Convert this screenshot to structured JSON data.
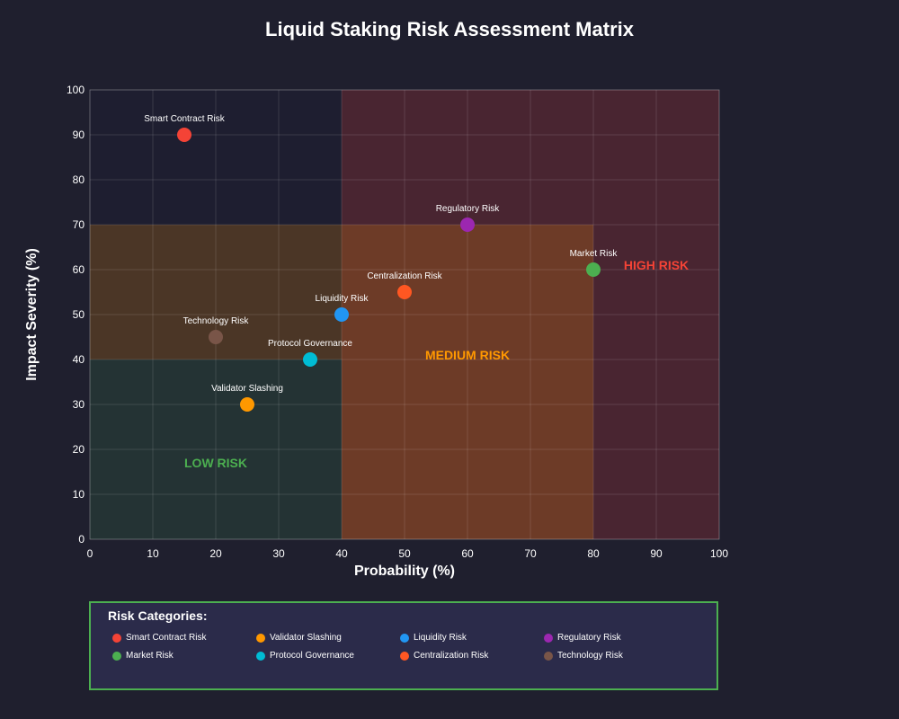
{
  "chart_data": {
    "type": "scatter",
    "title": "Liquid Staking Risk Assessment Matrix",
    "xlabel": "Probability (%)",
    "ylabel": "Impact Severity (%)",
    "xlim": [
      0,
      100
    ],
    "ylim": [
      0,
      100
    ],
    "xticks": [
      0,
      10,
      20,
      30,
      40,
      50,
      60,
      70,
      80,
      90,
      100
    ],
    "yticks": [
      0,
      10,
      20,
      30,
      40,
      50,
      60,
      70,
      80,
      90,
      100
    ],
    "grid": true,
    "zones": [
      {
        "name": "low",
        "label": "LOW RISK",
        "x": [
          0,
          40
        ],
        "y": [
          0,
          40
        ],
        "color": "#4caf50",
        "label_at": [
          20,
          17
        ]
      },
      {
        "name": "medium",
        "label": "MEDIUM RISK",
        "x": [
          0,
          80
        ],
        "y": [
          0,
          70
        ],
        "color": "#ff9800",
        "label_at": [
          60,
          41
        ]
      },
      {
        "name": "high",
        "label": "HIGH RISK",
        "x": [
          40,
          100
        ],
        "y": [
          0,
          100
        ],
        "color": "#f44336",
        "label_at": [
          90,
          61
        ]
      }
    ],
    "points": [
      {
        "label": "Smart Contract Risk",
        "x": 15,
        "y": 90,
        "color": "#f44336"
      },
      {
        "label": "Validator Slashing",
        "x": 25,
        "y": 30,
        "color": "#ff9800"
      },
      {
        "label": "Liquidity Risk",
        "x": 40,
        "y": 50,
        "color": "#2196f3"
      },
      {
        "label": "Regulatory Risk",
        "x": 60,
        "y": 70,
        "color": "#9c27b0"
      },
      {
        "label": "Market Risk",
        "x": 80,
        "y": 60,
        "color": "#4caf50"
      },
      {
        "label": "Protocol Governance",
        "x": 35,
        "y": 40,
        "color": "#00bcd4"
      },
      {
        "label": "Centralization Risk",
        "x": 50,
        "y": 55,
        "color": "#ff5722"
      },
      {
        "label": "Technology Risk",
        "x": 20,
        "y": 45,
        "color": "#795548"
      }
    ]
  },
  "legend": {
    "title": "Risk Categories:",
    "items": [
      {
        "label": "Smart Contract Risk",
        "color": "#f44336"
      },
      {
        "label": "Validator Slashing",
        "color": "#ff9800"
      },
      {
        "label": "Liquidity Risk",
        "color": "#2196f3"
      },
      {
        "label": "Regulatory Risk",
        "color": "#9c27b0"
      },
      {
        "label": "Market Risk",
        "color": "#4caf50"
      },
      {
        "label": "Protocol Governance",
        "color": "#00bcd4"
      },
      {
        "label": "Centralization Risk",
        "color": "#ff5722"
      },
      {
        "label": "Technology Risk",
        "color": "#795548"
      }
    ]
  }
}
